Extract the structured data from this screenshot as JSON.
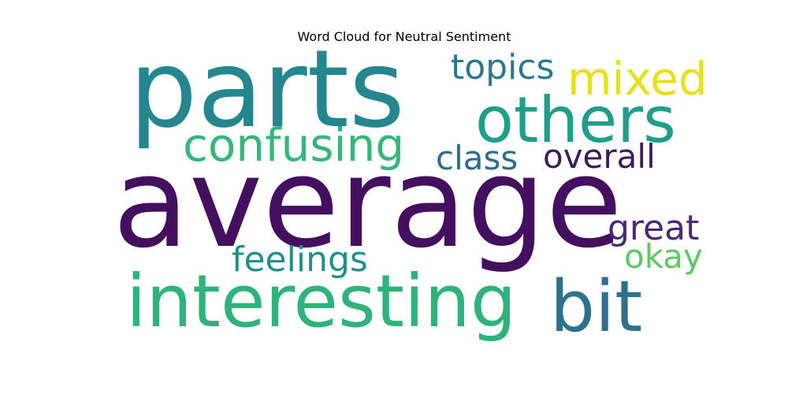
{
  "chart_data": {
    "type": "wordcloud",
    "title": "Word Cloud for Neutral Sentiment",
    "words": [
      {
        "text": "average",
        "weight": 1.0,
        "color": "#440f5f"
      },
      {
        "text": "parts",
        "weight": 0.85,
        "color": "#24868e"
      },
      {
        "text": "interesting",
        "weight": 0.55,
        "color": "#2eb37c"
      },
      {
        "text": "others",
        "weight": 0.5,
        "color": "#1f9e89"
      },
      {
        "text": "bit",
        "weight": 0.5,
        "color": "#2c728e"
      },
      {
        "text": "confusing",
        "weight": 0.35,
        "color": "#35b779"
      },
      {
        "text": "mixed",
        "weight": 0.35,
        "color": "#e6e11b"
      },
      {
        "text": "topics",
        "weight": 0.28,
        "color": "#2a788e"
      },
      {
        "text": "feelings",
        "weight": 0.28,
        "color": "#21908d"
      },
      {
        "text": "class",
        "weight": 0.25,
        "color": "#2f6b8e"
      },
      {
        "text": "overall",
        "weight": 0.25,
        "color": "#3b1c5a"
      },
      {
        "text": "great",
        "weight": 0.3,
        "color": "#482878"
      },
      {
        "text": "okay",
        "weight": 0.27,
        "color": "#5ec962"
      }
    ]
  }
}
